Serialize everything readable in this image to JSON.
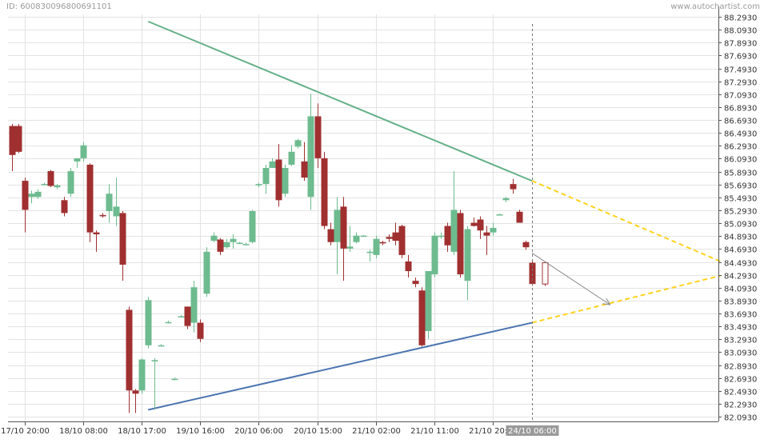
{
  "header": {
    "id_text": "ID: 600830096800691101",
    "brand_text": "www.autochartist.com"
  },
  "colors": {
    "up": "#6dbb8f",
    "down": "#a03030",
    "grid": "#e3e3e3",
    "resistance": "#66b08a",
    "support": "#4a74b0",
    "projection": "#ffd21e",
    "forecast_arrow": "#888888",
    "marker_bg": "#9a9a9a"
  },
  "chart_data": {
    "type": "candlestick",
    "title": "",
    "xlabel": "",
    "ylabel": "",
    "y_ticks": [
      "88.2930",
      "88.0930",
      "87.8930",
      "87.6930",
      "87.4930",
      "87.2930",
      "87.0930",
      "86.8930",
      "86.6930",
      "86.4930",
      "86.2930",
      "86.0930",
      "85.8930",
      "85.6930",
      "85.4930",
      "85.2930",
      "85.0930",
      "84.8930",
      "84.6930",
      "84.4930",
      "84.2930",
      "84.0930",
      "83.8930",
      "83.6930",
      "83.4930",
      "83.2930",
      "83.0930",
      "82.8930",
      "82.6930",
      "82.4930",
      "82.2930",
      "82.0930"
    ],
    "ylim": [
      82.02,
      88.33
    ],
    "x_ticks": [
      {
        "index": 2,
        "label": "17/10 20:00"
      },
      {
        "index": 11,
        "label": "18/10 08:00"
      },
      {
        "index": 20,
        "label": "18/10 17:00"
      },
      {
        "index": 29,
        "label": "19/10 16:00"
      },
      {
        "index": 38,
        "label": "20/10 06:00"
      },
      {
        "index": 47,
        "label": "20/10 15:00"
      },
      {
        "index": 56,
        "label": "21/10 02:00"
      },
      {
        "index": 65,
        "label": "21/10 11:00"
      },
      {
        "index": 74,
        "label": "21/10 20:00"
      }
    ],
    "current_marker": {
      "index": 80,
      "label": "24/10 06:00"
    },
    "candles": [
      [
        86.6,
        86.63,
        85.9,
        86.15
      ],
      [
        86.6,
        86.63,
        86.18,
        86.2
      ],
      [
        85.75,
        85.8,
        84.95,
        85.3
      ],
      [
        85.5,
        85.6,
        85.4,
        85.55
      ],
      [
        85.5,
        85.62,
        85.47,
        85.58
      ],
      [
        85.7,
        85.72,
        85.68,
        85.7
      ],
      [
        85.9,
        85.92,
        85.65,
        85.67
      ],
      [
        85.65,
        85.7,
        85.62,
        85.68
      ],
      [
        85.45,
        85.5,
        85.2,
        85.25
      ],
      [
        85.55,
        85.95,
        85.5,
        85.9
      ],
      [
        86.05,
        86.1,
        85.95,
        86.1
      ],
      [
        86.1,
        86.35,
        86.05,
        86.3
      ],
      [
        86.0,
        86.02,
        84.8,
        84.95
      ],
      [
        84.95,
        84.98,
        84.65,
        84.92
      ],
      [
        85.22,
        85.25,
        85.18,
        85.2
      ],
      [
        85.28,
        85.7,
        85.1,
        85.55
      ],
      [
        85.2,
        85.8,
        85.05,
        85.35
      ],
      [
        85.25,
        85.28,
        84.2,
        84.45
      ],
      [
        83.75,
        83.8,
        82.15,
        82.5
      ],
      [
        82.5,
        82.52,
        82.15,
        82.45
      ],
      [
        82.5,
        83.0,
        82.45,
        82.98
      ],
      [
        83.2,
        83.95,
        83.15,
        83.9
      ],
      [
        82.95,
        83.0,
        82.2,
        82.97
      ],
      [
        83.2,
        83.22,
        83.18,
        83.2
      ],
      [
        83.56,
        83.58,
        83.54,
        83.56
      ],
      [
        82.68,
        82.7,
        82.66,
        82.68
      ],
      [
        83.65,
        83.67,
        83.63,
        83.65
      ],
      [
        83.8,
        83.8,
        83.45,
        83.5
      ],
      [
        83.55,
        84.2,
        83.4,
        84.1
      ],
      [
        83.55,
        83.6,
        83.25,
        83.3
      ],
      [
        84.0,
        84.72,
        83.95,
        84.65
      ],
      [
        84.82,
        84.95,
        84.8,
        84.9
      ],
      [
        84.84,
        84.86,
        84.6,
        84.65
      ],
      [
        84.72,
        84.85,
        84.7,
        84.8
      ],
      [
        84.8,
        84.92,
        84.7,
        84.85
      ],
      [
        84.79,
        84.8,
        84.77,
        84.79
      ],
      [
        84.77,
        84.79,
        84.75,
        84.77
      ],
      [
        84.8,
        85.3,
        84.78,
        85.28
      ],
      [
        85.68,
        85.72,
        85.65,
        85.7
      ],
      [
        85.7,
        86.0,
        85.55,
        85.95
      ],
      [
        85.95,
        86.1,
        85.95,
        86.05
      ],
      [
        86.08,
        86.32,
        85.35,
        85.45
      ],
      [
        85.55,
        86.0,
        85.5,
        85.95
      ],
      [
        86.0,
        86.3,
        85.98,
        86.2
      ],
      [
        86.28,
        86.4,
        86.25,
        86.38
      ],
      [
        86.05,
        86.35,
        85.75,
        85.8
      ],
      [
        85.5,
        87.1,
        85.3,
        86.75
      ],
      [
        86.75,
        86.95,
        85.95,
        86.1
      ],
      [
        86.1,
        86.2,
        85.0,
        85.05
      ],
      [
        85.0,
        85.1,
        84.75,
        84.8
      ],
      [
        84.8,
        85.5,
        84.3,
        85.3
      ],
      [
        85.35,
        85.5,
        84.2,
        84.7
      ],
      [
        84.7,
        85.05,
        84.65,
        84.73
      ],
      [
        84.8,
        84.95,
        84.78,
        84.9
      ],
      [
        84.9,
        84.91,
        84.89,
        84.9
      ],
      [
        84.65,
        84.68,
        84.5,
        84.65
      ],
      [
        84.6,
        84.9,
        84.55,
        84.85
      ],
      [
        84.8,
        84.82,
        84.75,
        84.78
      ],
      [
        84.88,
        84.92,
        84.8,
        84.85
      ],
      [
        84.95,
        85.1,
        84.75,
        84.82
      ],
      [
        85.05,
        85.07,
        84.55,
        84.6
      ],
      [
        84.5,
        84.6,
        84.25,
        84.35
      ],
      [
        84.2,
        84.25,
        84.1,
        84.15
      ],
      [
        84.05,
        84.1,
        83.18,
        83.2
      ],
      [
        83.42,
        84.3,
        83.3,
        84.35
      ],
      [
        84.3,
        84.95,
        84.25,
        84.9
      ],
      [
        84.88,
        84.95,
        84.85,
        84.9
      ],
      [
        85.05,
        85.1,
        84.65,
        84.75
      ],
      [
        84.65,
        85.9,
        84.6,
        85.3
      ],
      [
        85.25,
        85.3,
        84.25,
        84.3
      ],
      [
        84.2,
        85.05,
        83.9,
        85.0
      ],
      [
        85.1,
        85.18,
        85.04,
        85.05
      ],
      [
        85.15,
        85.2,
        84.85,
        84.98
      ],
      [
        84.95,
        85.05,
        84.6,
        84.9
      ],
      [
        84.95,
        85.1,
        84.9,
        85.02
      ],
      [
        85.23,
        85.24,
        85.22,
        85.23
      ],
      [
        85.45,
        85.5,
        85.42,
        85.48
      ],
      [
        85.7,
        85.78,
        85.55,
        85.62
      ],
      [
        85.27,
        85.3,
        85.15,
        85.1
      ],
      [
        84.8,
        84.82,
        84.68,
        84.72
      ],
      [
        84.48,
        84.5,
        84.12,
        84.15
      ]
    ],
    "forecast_candle_index": 82,
    "trendlines": [
      {
        "role": "resistance",
        "from": [
          21,
          88.22
        ],
        "to": [
          80,
          85.75
        ]
      },
      {
        "role": "support",
        "from": [
          21,
          82.2
        ],
        "to": [
          80,
          83.55
        ]
      }
    ],
    "projections": [
      {
        "role": "resistance-projection",
        "from": [
          80,
          85.75
        ],
        "to": [
          109,
          84.5
        ]
      },
      {
        "role": "support-projection",
        "from": [
          80,
          83.55
        ],
        "to": [
          109,
          84.28
        ]
      }
    ],
    "forecast_arrow": {
      "from": [
        80,
        84.63
      ],
      "to": [
        92,
        83.83
      ]
    }
  }
}
